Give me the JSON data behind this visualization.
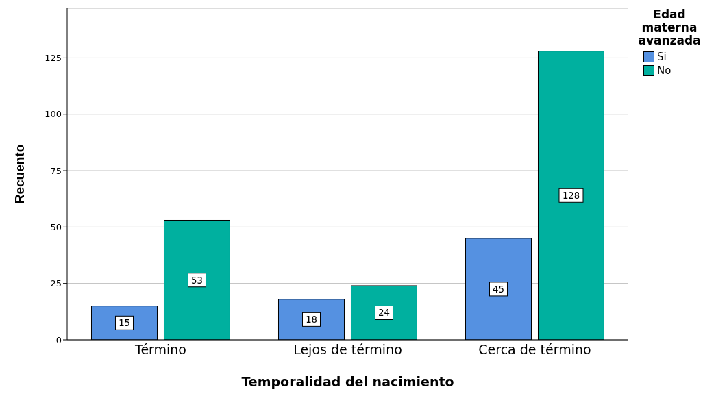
{
  "chart_data": {
    "type": "bar",
    "xlabel": "Temporalidad del nacimiento",
    "ylabel": "Recuento",
    "legend_title": "Edad materna avanzada",
    "categories": [
      "Término",
      "Lejos de término",
      "Cerca de término"
    ],
    "series": [
      {
        "name": "Si",
        "color": "#5591e1",
        "values": [
          15,
          18,
          45
        ]
      },
      {
        "name": "No",
        "color": "#00b09f",
        "values": [
          53,
          24,
          128
        ]
      }
    ],
    "ylim": [
      0,
      147
    ],
    "yticks": [
      0,
      25,
      50,
      75,
      100,
      125
    ],
    "grid": "y",
    "legend": "top right",
    "data_labels": true
  }
}
